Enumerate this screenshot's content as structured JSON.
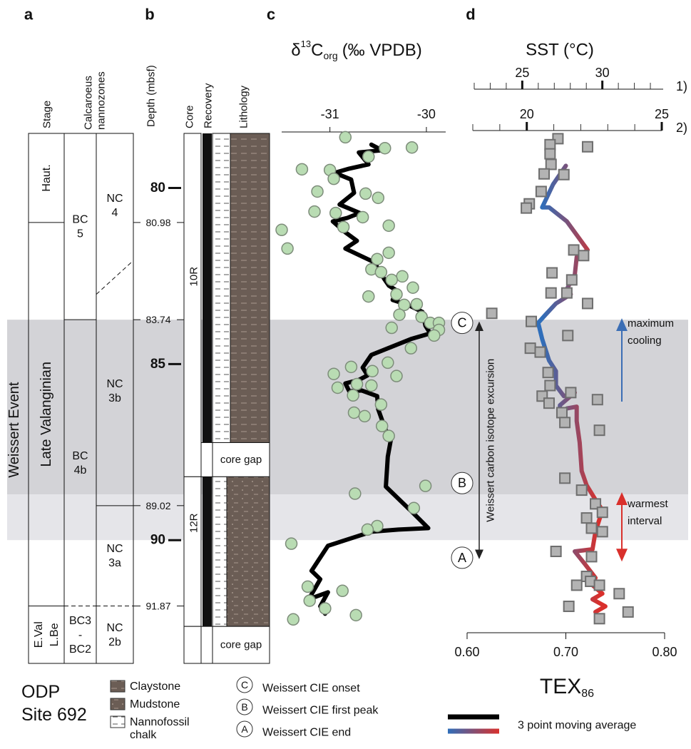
{
  "panel_labels": [
    "a",
    "b",
    "c",
    "d"
  ],
  "site": [
    "ODP",
    "Site 692"
  ],
  "bands": [
    {
      "top": 83.74,
      "bottom": 88.7,
      "color": "#d3d3d7"
    },
    {
      "top": 88.7,
      "bottom": 90.0,
      "color": "#e5e5e9"
    }
  ],
  "stratigraphy": {
    "headers": {
      "stage": "Stage",
      "nannozones": [
        "Calcaroeus",
        "nannozones"
      ],
      "depth": "Depth (mbsf)",
      "core": "Core",
      "recovery": "Recovery",
      "lithology": "Lithology"
    },
    "event_label": "Weissert Event",
    "ylim": [
      78.45,
      93.5
    ],
    "yticks": [
      80,
      85,
      90
    ],
    "boundary_ticks": [
      80.98,
      83.74,
      89.02,
      91.87
    ],
    "stages": [
      {
        "label": [
          "Haut."
        ],
        "top": 78.45,
        "bottom": 80.98
      },
      {
        "label": [
          "Late Valanginian"
        ],
        "top": 80.98,
        "bottom": 91.87
      },
      {
        "label": [
          "E.Val",
          "L.Be"
        ],
        "top": 91.87,
        "bottom": 93.5
      }
    ],
    "bc_zones": [
      {
        "label": [
          "BC",
          "5"
        ],
        "top": 78.45,
        "bottom": 83.74
      },
      {
        "label": [
          "BC",
          "4b"
        ],
        "top": 83.74,
        "bottom": 91.87,
        "dashed": true
      },
      {
        "label": [
          "BC3",
          "-",
          "BC2"
        ],
        "top": 91.87,
        "bottom": 93.5
      }
    ],
    "nc_zones": [
      {
        "label": [
          "NC",
          "4"
        ],
        "top": 78.45,
        "bottom": [
          83.02,
          82.06
        ],
        "dashed": true
      },
      {
        "label": [
          "NC",
          "3b"
        ],
        "top": 82.5,
        "bottom": 89.02
      },
      {
        "label": [
          "NC",
          "3a"
        ],
        "top": 89.02,
        "bottom": 91.87,
        "dashed": true
      },
      {
        "label": [
          "NC",
          "2b"
        ],
        "top": 91.87,
        "bottom": 93.5
      }
    ],
    "cores": [
      {
        "label": "10R",
        "top": 78.45,
        "bottom": 88.2,
        "recovered_to": 87.23
      },
      {
        "label": "12R",
        "top": 88.2,
        "bottom": 92.45,
        "recovered_to": 92.45
      }
    ],
    "gap_label": "core gap",
    "lithology_legend": [
      {
        "label": [
          "Claystone"
        ]
      },
      {
        "label": [
          "Mudstone"
        ]
      },
      {
        "label": [
          "Nannofossil",
          "chalk"
        ]
      }
    ]
  },
  "markers": [
    {
      "letter": "A",
      "depth": 90.5,
      "label": "Weissert CIE end"
    },
    {
      "letter": "B",
      "depth": 88.38,
      "label": "Weissert CIE first peak"
    },
    {
      "letter": "C",
      "depth": 83.83,
      "label": "Weissert CIE onset"
    }
  ],
  "cie_label": "Weissert carbon isotope excursion",
  "chart_data": [
    {
      "type": "scatter",
      "title": {
        "symbol": "δ",
        "sup": "13",
        "main": "C",
        "sub": "org",
        "rest": "(‰ VPDB)"
      },
      "xlim": [
        -31.5,
        -29.8
      ],
      "xticks": [
        -31,
        -30
      ],
      "ylim": [
        78.45,
        93.5
      ],
      "series": [
        {
          "color": "#b9dcb3",
          "x": [
            -30.84,
            -31.29,
            -30.43,
            -30.15,
            -30.6,
            -31.0,
            -30.96,
            -31.13,
            -30.63,
            -30.5,
            -31.16,
            -30.94,
            -30.66,
            -30.86,
            -30.39,
            -31.5,
            -31.44,
            -30.39,
            -30.51,
            -30.57,
            -30.47,
            -30.25,
            -30.36,
            -30.14,
            -30.31,
            -30.6,
            -30.1,
            -30.23,
            -30.28,
            -30.05,
            -29.96,
            -29.87,
            -29.87,
            -29.92,
            -30.36,
            -30.16,
            -30.78,
            -30.56,
            -30.4,
            -30.31,
            -30.92,
            -30.96,
            -30.72,
            -30.57,
            -30.76,
            -30.75,
            -30.47,
            -30.64,
            -30.46,
            -30.39,
            -30.01,
            -30.74,
            -30.13,
            -30.51,
            -30.61,
            -31.4,
            -31.23,
            -30.87,
            -31.21,
            -31.05,
            -30.73,
            -31.38
          ],
          "y": [
            78.56,
            79.47,
            78.87,
            78.85,
            79.11,
            79.49,
            79.74,
            80.1,
            80.16,
            80.28,
            80.67,
            80.71,
            80.83,
            81.11,
            81.07,
            81.19,
            81.72,
            81.84,
            82.02,
            82.31,
            82.39,
            82.51,
            82.61,
            82.83,
            83.02,
            83.08,
            83.3,
            83.32,
            83.6,
            83.66,
            83.83,
            83.83,
            84.03,
            84.19,
            83.97,
            84.55,
            85.08,
            85.2,
            84.96,
            85.34,
            85.67,
            85.28,
            85.57,
            85.61,
            85.89,
            86.38,
            86.15,
            86.48,
            86.76,
            87.04,
            88.46,
            88.68,
            89.09,
            89.6,
            89.7,
            90.1,
            91.32,
            91.44,
            91.72,
            91.94,
            92.13,
            92.25
          ]
        },
        {
          "name": "3 point moving average",
          "color": "#000000",
          "x": [
            -30.57,
            -30.46,
            -30.7,
            -30.6,
            -30.8,
            -30.95,
            -30.78,
            -30.75,
            -30.9,
            -30.69,
            -30.82,
            -30.97,
            -30.84,
            -30.72,
            -30.84,
            -30.54,
            -30.44,
            -30.39,
            -30.31,
            -30.35,
            -30.19,
            -30.04,
            -30.01,
            -29.96,
            -30.16,
            -30.57,
            -30.66,
            -30.61,
            -30.7,
            -30.84,
            -30.8,
            -30.67,
            -30.51,
            -30.5,
            -30.43,
            -30.37,
            -30.4,
            -30.42,
            -30.13,
            -29.98,
            -30.29,
            -30.57,
            -31.02,
            -31.19,
            -31.1,
            -31.22,
            -31.02,
            -31.1,
            -31.05
          ],
          "y": [
            78.77,
            78.93,
            78.99,
            79.33,
            79.45,
            79.57,
            79.76,
            80.14,
            80.47,
            80.71,
            80.85,
            80.95,
            81.26,
            81.5,
            81.72,
            82.11,
            82.57,
            82.77,
            82.91,
            83.18,
            83.32,
            83.52,
            83.91,
            84.13,
            84.29,
            84.74,
            85.1,
            85.32,
            85.45,
            85.55,
            85.77,
            85.75,
            85.91,
            86.28,
            86.82,
            87.17,
            87.63,
            88.48,
            89.25,
            89.66,
            89.7,
            89.76,
            90.16,
            90.87,
            91.11,
            91.68,
            91.48,
            91.88,
            92.09
          ]
        }
      ]
    },
    {
      "type": "scatter",
      "title": "SST (°C)",
      "xlabel": {
        "main": "TEX",
        "sub": "86"
      },
      "xlim": [
        0.6,
        0.8
      ],
      "xticks": [
        {
          "value": 0.6,
          "label": "0.60"
        },
        {
          "value": 0.7,
          "label": "0.70"
        },
        {
          "value": 0.8,
          "label": "0.80"
        }
      ],
      "ylim": [
        78.45,
        93.5
      ],
      "sst_scales": [
        {
          "label": "1)",
          "xlim": [
            22,
            33.8
          ],
          "xticks": [
            25,
            30
          ],
          "minor": [
            22,
            23,
            24,
            26,
            27,
            28,
            29,
            31,
            32,
            33
          ]
        },
        {
          "label": "2)",
          "xlim": [
            18,
            25
          ],
          "xticks": [
            20,
            25
          ],
          "minor": [
            18,
            19,
            21,
            22,
            23,
            24
          ]
        }
      ],
      "series": [
        {
          "color": "#b3b3b3",
          "x": [
            0.692,
            0.684,
            0.684,
            0.722,
            0.685,
            0.678,
            0.698,
            0.675,
            0.663,
            0.66,
            0.708,
            0.718,
            0.686,
            0.706,
            0.685,
            0.701,
            0.722,
            0.625,
            0.665,
            0.702,
            0.664,
            0.674,
            0.682,
            0.684,
            0.705,
            0.676,
            0.683,
            0.696,
            0.732,
            0.699,
            0.734,
            0.699,
            0.716,
            0.73,
            0.737,
            0.721,
            0.726,
            0.737,
            0.69,
            0.726,
            0.721,
            0.725,
            0.711,
            0.734,
            0.754,
            0.703,
            0.763,
            0.734
          ],
          "y": [
            78.6,
            78.77,
            79.03,
            78.83,
            79.33,
            79.6,
            79.62,
            80.1,
            80.45,
            80.57,
            81.76,
            81.92,
            82.41,
            82.61,
            82.98,
            82.98,
            83.28,
            83.56,
            83.79,
            84.19,
            84.55,
            84.66,
            85.24,
            85.61,
            85.81,
            85.91,
            86.11,
            86.38,
            86.01,
            86.66,
            86.88,
            88.24,
            88.58,
            88.97,
            89.21,
            89.37,
            89.66,
            89.76,
            90.32,
            90.47,
            91.03,
            91.17,
            91.28,
            91.28,
            91.52,
            91.88,
            92.04,
            92.23
          ]
        },
        {
          "colors": [
            "#2f6eba",
            "#d9302c"
          ],
          "x": [
            0.7,
            0.696,
            0.687,
            0.676,
            0.683,
            0.701,
            0.722,
            0.711,
            0.709,
            0.701,
            0.705,
            0.69,
            0.68,
            0.672,
            0.676,
            0.683,
            0.69,
            0.69,
            0.698,
            0.709,
            0.694,
            0.694,
            0.701,
            0.711,
            0.711,
            0.714,
            0.716,
            0.721,
            0.73,
            0.737,
            0.73,
            0.727,
            0.709,
            0.719,
            0.73,
            0.727,
            0.737,
            0.727,
            0.74,
            0.73
          ],
          "y": [
            79.37,
            79.53,
            79.9,
            80.55,
            80.55,
            80.95,
            81.76,
            81.96,
            82.47,
            82.87,
            83.02,
            83.28,
            83.58,
            83.83,
            84.29,
            84.9,
            85.2,
            85.61,
            85.91,
            85.81,
            86.17,
            86.42,
            86.26,
            86.21,
            86.62,
            87.23,
            88.04,
            88.44,
            88.85,
            89.15,
            89.76,
            90.26,
            90.32,
            90.67,
            91.07,
            91.28,
            91.52,
            91.68,
            91.88,
            92.04
          ]
        }
      ],
      "annotations": [
        {
          "label": [
            "maximum",
            "cooling"
          ],
          "color": "#3b6eb5"
        },
        {
          "label": [
            "warmest",
            "interval"
          ],
          "color": "#d9302c"
        }
      ]
    }
  ]
}
